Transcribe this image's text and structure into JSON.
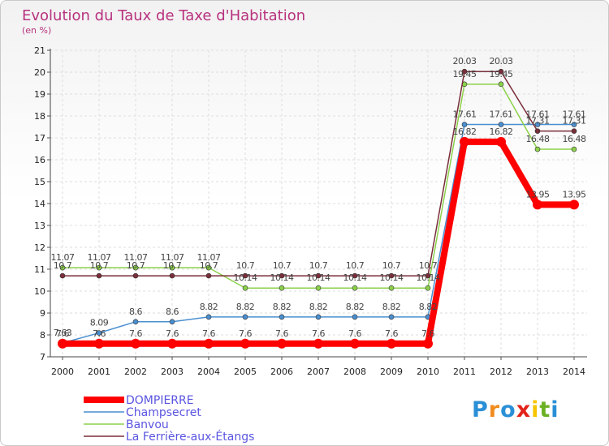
{
  "chart_data": {
    "type": "line",
    "title": "Evolution du Taux de Taxe d'Habitation",
    "subtitle": "(en %)",
    "xlabel": "",
    "ylabel": "",
    "ylim": [
      7,
      21
    ],
    "yticks": [
      "7",
      "8",
      "9",
      "10",
      "11",
      "12",
      "13",
      "14",
      "15",
      "16",
      "17",
      "18",
      "19",
      "20",
      "21"
    ],
    "categories": [
      "2000",
      "2001",
      "2002",
      "2003",
      "2004",
      "2005",
      "2006",
      "2007",
      "2008",
      "2009",
      "2010",
      "2011",
      "2012",
      "2013",
      "2014"
    ],
    "grid": true,
    "legend_position": "bottom-left",
    "series": [
      {
        "name": "DOMPIERRE",
        "color": "#ff0000",
        "values": [
          7.6,
          7.6,
          7.6,
          7.6,
          7.6,
          7.6,
          7.6,
          7.6,
          7.6,
          7.6,
          7.6,
          16.82,
          16.82,
          13.95,
          13.95
        ],
        "labels": [
          "7.6",
          "7.6",
          "7.6",
          "7.6",
          "7.6",
          "7.6",
          "7.6",
          "7.6",
          "7.6",
          "7.6",
          "7.6",
          "16.82",
          "16.82",
          "13.95",
          "13.95"
        ]
      },
      {
        "name": "Champsecret",
        "color": "#4a8fd0",
        "values": [
          7.63,
          8.09,
          8.6,
          8.6,
          8.82,
          8.82,
          8.82,
          8.82,
          8.82,
          8.82,
          8.82,
          17.61,
          17.61,
          17.61,
          17.61
        ],
        "labels": [
          "7.63",
          "8.09",
          "8.6",
          "8.6",
          "8.82",
          "8.82",
          "8.82",
          "8.82",
          "8.82",
          "8.82",
          "8.82",
          "17.61",
          "17.61",
          "17.61",
          "17.61"
        ]
      },
      {
        "name": "Banvou",
        "color": "#8cd14a",
        "values": [
          11.07,
          11.07,
          11.07,
          11.07,
          11.07,
          10.14,
          10.14,
          10.14,
          10.14,
          10.14,
          10.14,
          19.45,
          19.45,
          16.48,
          16.48
        ],
        "labels": [
          "11.07",
          "11.07",
          "11.07",
          "11.07",
          "11.07",
          "10.14",
          "10.14",
          "10.14",
          "10.14",
          "10.14",
          "10.14",
          "19.45",
          "19.45",
          "16.48",
          "16.48"
        ]
      },
      {
        "name": "La Ferrière-aux-Étangs",
        "color": "#7a2e3a",
        "values": [
          10.7,
          10.7,
          10.7,
          10.7,
          10.7,
          10.7,
          10.7,
          10.7,
          10.7,
          10.7,
          10.7,
          20.03,
          20.03,
          17.31,
          17.31
        ],
        "labels": [
          "10.7",
          "10.7",
          "10.7",
          "10.7",
          "10.7",
          "10.7",
          "10.7",
          "10.7",
          "10.7",
          "10.7",
          "10.7",
          "20.03",
          "20.03",
          "17.31",
          "17.31"
        ]
      }
    ]
  },
  "logo": {
    "text": "Proxiti",
    "colors": [
      "#2a8fd6",
      "#f08c1e",
      "#2a8fd6",
      "#e2231a",
      "#f6c500",
      "#6ab023",
      "#2a8fd6"
    ]
  }
}
